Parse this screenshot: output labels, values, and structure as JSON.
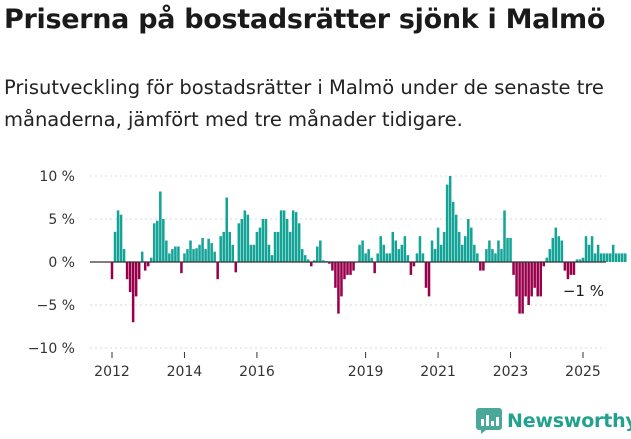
{
  "title": "Priserna på bostadsrätter sjönk i Malmö",
  "subtitle": "Prisutveckling för bostadsrätter i Malmö under de senaste tre månaderna, jämfört med tre månader tidigare.",
  "brand": {
    "name": "Newsworthy",
    "icon": "newsworthy-bar-chart-icon"
  },
  "chart_data": {
    "type": "bar",
    "x_unit": "month",
    "ylim": [
      -10,
      10
    ],
    "yticks": [
      {
        "value": 10,
        "label": "10 %"
      },
      {
        "value": 5,
        "label": "5 %"
      },
      {
        "value": 0,
        "label": "0 %"
      },
      {
        "value": -5,
        "label": "−5 %"
      },
      {
        "value": -10,
        "label": "−10 %"
      }
    ],
    "xticks": [
      {
        "date": "2012-01",
        "label": "2012"
      },
      {
        "date": "2014-01",
        "label": "2014"
      },
      {
        "date": "2016-01",
        "label": "2016"
      },
      {
        "date": "2019-01",
        "label": "2019"
      },
      {
        "date": "2021-01",
        "label": "2021"
      },
      {
        "date": "2023-01",
        "label": "2023"
      },
      {
        "date": "2025-01",
        "label": "2025"
      }
    ],
    "grid": "horizontal",
    "colors": {
      "positive": "#13a497",
      "negative": "#99004c",
      "axis": "#333333",
      "grid": "#d9d9d9"
    },
    "start_month": "2012-01",
    "values": [
      -2,
      3.5,
      6,
      5.5,
      1.5,
      -2,
      -3.5,
      -7,
      -4,
      -2,
      1.2,
      -1,
      -0.5,
      0.5,
      4.5,
      4.8,
      8.2,
      5,
      2.5,
      1,
      1.5,
      1.8,
      1.8,
      -1.3,
      1,
      1.5,
      2.5,
      1.5,
      1.6,
      2,
      2.8,
      1.5,
      2.7,
      2.2,
      1.2,
      -2,
      3,
      3.5,
      7.5,
      3.5,
      2,
      -1.2,
      4.5,
      5,
      6,
      5.5,
      2,
      2,
      3.5,
      4,
      5,
      5,
      2,
      0.8,
      3.5,
      3.5,
      6,
      6,
      5,
      3.5,
      6,
      5.8,
      4.5,
      1.5,
      0.8,
      0.3,
      -0.5,
      0.2,
      1.8,
      2.5,
      0.2,
      0.1,
      -0.2,
      -1,
      -3,
      -6,
      -4,
      -2,
      -1.5,
      -1.5,
      -1,
      0,
      2,
      2.5,
      1,
      1.5,
      0.5,
      -1.3,
      1,
      3,
      2,
      1,
      1,
      3.5,
      2.5,
      1.5,
      2,
      3,
      0.8,
      -1.5,
      -0.5,
      1,
      3,
      1,
      -3,
      -4,
      2.5,
      1.5,
      4,
      2,
      3.5,
      9,
      10,
      7,
      5.5,
      3.5,
      2,
      3,
      5,
      4,
      2,
      1,
      -1,
      -1,
      1.5,
      2.5,
      1.5,
      1,
      2.5,
      1.5,
      6,
      2.8,
      2.8,
      -1.5,
      -4,
      -6,
      -6,
      -4,
      -5,
      -4,
      -3,
      -4,
      -4,
      -0.5,
      0.5,
      1.5,
      2.8,
      4,
      3,
      2.5,
      -1,
      -2,
      -1.5,
      -1.5,
      0.3,
      0.3,
      0.5,
      3,
      2,
      3,
      1,
      2,
      1,
      1,
      1,
      1,
      2,
      1,
      1,
      1,
      1,
      0,
      0,
      -1
    ],
    "last_value_label": "−1 %"
  }
}
